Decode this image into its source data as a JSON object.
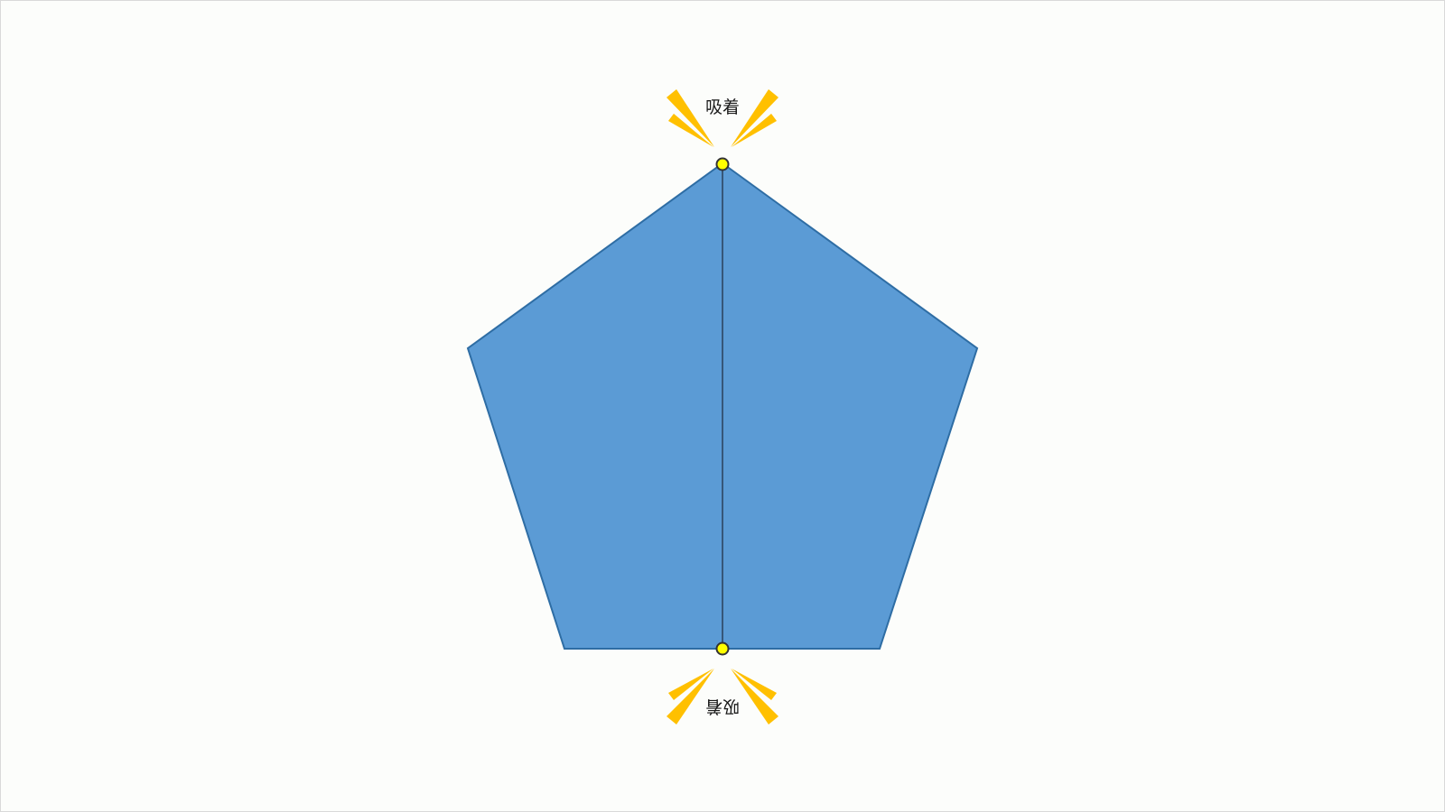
{
  "colors": {
    "background": "#fcfdfb",
    "pentagon_fill": "#5b9bd5",
    "pentagon_stroke": "#2e6da4",
    "guide_line": "#1f2a3a",
    "snap_point_fill": "#ffff00",
    "snap_point_stroke": "#333333",
    "burst": "#ffc000"
  },
  "snap_top": {
    "label": "吸着",
    "icon": "snap-burst-icon"
  },
  "snap_bottom": {
    "label": "吸着",
    "icon": "snap-burst-icon"
  }
}
